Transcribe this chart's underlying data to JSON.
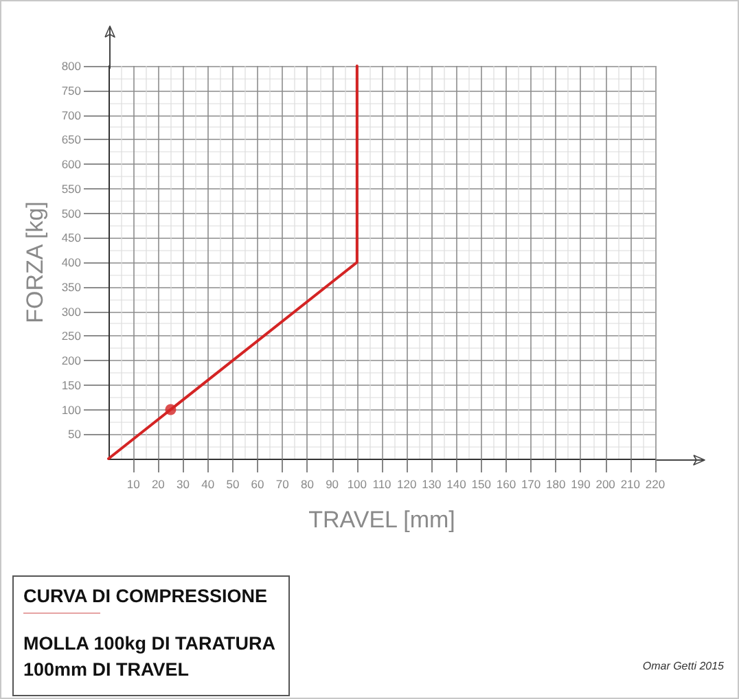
{
  "chart_data": {
    "type": "line",
    "title": "CURVA DI COMPRESSIONE",
    "subtitle": "MOLLA 100kg DI TARATURA\n100mm DI TRAVEL",
    "xlabel": "TRAVEL [mm]",
    "ylabel": "FORZA [kg]",
    "annotations": [
      "Omar Getti 2015"
    ],
    "xlim": [
      0,
      220
    ],
    "ylim": [
      0,
      800
    ],
    "xticks": [
      10,
      20,
      30,
      40,
      50,
      60,
      70,
      80,
      90,
      100,
      110,
      120,
      130,
      140,
      150,
      160,
      170,
      180,
      190,
      200,
      210,
      220
    ],
    "yticks": [
      50,
      100,
      150,
      200,
      250,
      300,
      350,
      400,
      450,
      500,
      550,
      600,
      650,
      700,
      750,
      800
    ],
    "grid": true,
    "series": [
      {
        "color": "#d42424",
        "marker": "none",
        "x": [
          0,
          100,
          100
        ],
        "values": [
          0,
          400,
          800
        ]
      },
      {
        "type": "scatter",
        "color": "#d42424",
        "marker": "circle",
        "x": [
          25
        ],
        "values": [
          100
        ]
      }
    ]
  }
}
